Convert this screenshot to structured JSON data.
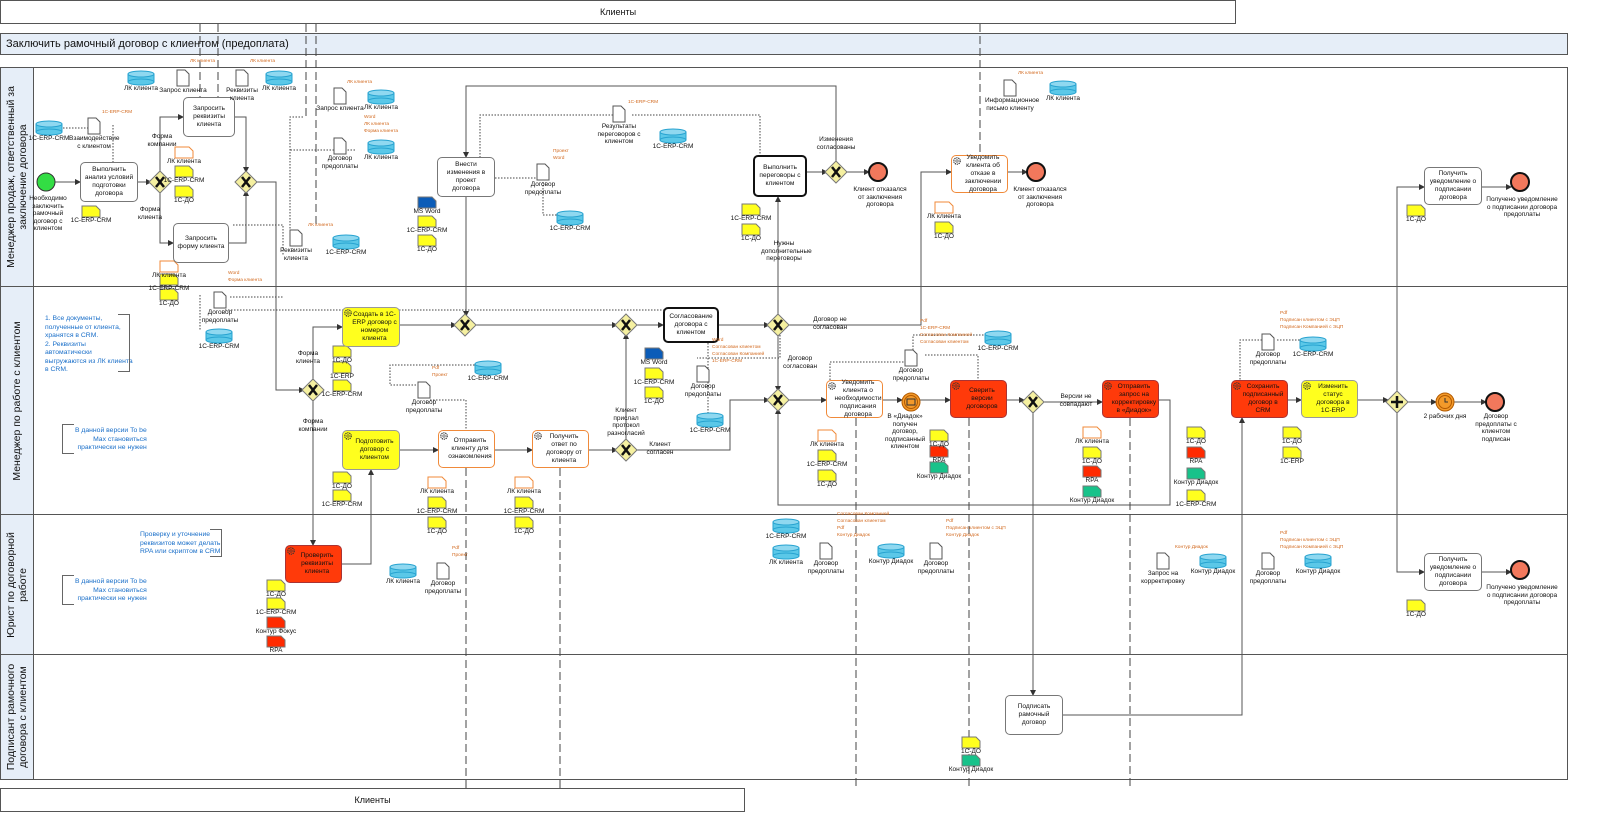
{
  "pools": {
    "top_external": "Клиенты",
    "bottom_external": "Клиенты",
    "main_title": "Заключить рамочный договор с клиентом (предоплата)"
  },
  "lanes": [
    "Менеджер продаж, ответственный за\nзаключение договора",
    "Менеджер по работе с клиентом",
    "Юрист по договорной\nработе",
    "Подписант рамочного\nдоговора с клиентом"
  ],
  "tasks": [
    "Выполнить анализ условий подготовки договора",
    "Запросить реквизиты клиента",
    "Запросить форму клиента",
    "Внести изменения в проект договора",
    "Выполнить переговоры с клиентом",
    "Уведомить клиента об отказе в заключении договора",
    "Получить уведомление о подписании договора",
    "Создать в 1С-ERP договор с номером клиента",
    "Согласование договора с клиентом",
    "Подготовить договор с клиентом",
    "Отправить клиенту для ознакомления",
    "Получить ответ по договору от клиента",
    "Уведомить клиента о необходимости подписания договора",
    "Сверить версии договоров",
    "Отправить запрос на корректировку в «Диадок»",
    "Сохранить подписанный договор в CRM",
    "Изменить статус договора в 1С-ERP",
    "Проверить реквизиты клиента",
    "Получить уведомление о подписании договора",
    "Подписать рамочный договор"
  ],
  "events": [
    "Необходимо заключить рамочный договор с клиентом",
    "Клиент отказался от заключения договора",
    "Клиент отказался от заключения договора",
    "Получено уведомление о подписании договора предоплаты",
    "Договор предоплаты с клиентом подписан",
    "Получено уведомление о подписании договора предоплаты",
    "В «Диадок» получен договор, подписанный клиентом",
    "2 рабочих дня"
  ],
  "flow_labels": [
    "Форма компании",
    "Форма клиента",
    "Изменения согласованы",
    "Нужны дополнительные переговоры",
    "Договор не согласован",
    "Договор согласован",
    "Форма клиента",
    "Форма компании",
    "Клиент прислал протокол разногласий",
    "Клиент согласен",
    "Версии не совпадают"
  ],
  "data_objects": [
    "ЛК клиента",
    "Запрос клиента",
    "Реквизиты клиента",
    "ЛК клиента",
    "1С-ERP-CRM",
    "Взаимодействие с клиентом",
    "1С-ERP-CRM",
    "ЛК клиента",
    "1С-ERP-CRM",
    "1С-ДО",
    "Запрос клиента",
    "ЛК клиента",
    "Договор предоплаты",
    "ЛК клиента",
    "Реквизиты клиента",
    "1С-ERP-CRM",
    "ЛК клиента",
    "1С-ERP-CRM",
    "1С-ДО",
    "MS Word",
    "1С-ERP-CRM",
    "1С-ДО",
    "Договор предоплаты",
    "1С-ERP-CRM",
    "Результаты переговоров с клиентом",
    "1С-ERP-CRM",
    "1С-ERP-CRM",
    "1С-ДО",
    "Информационное письмо клиенту",
    "ЛК клиента",
    "ЛК клиента",
    "1С-ДО",
    "1С-ДО",
    "Договор предоплаты",
    "1С-ERP-CRM",
    "1С-ДО",
    "1С-ERP",
    "1С-ERP-CRM",
    "Договор предоплаты",
    "1С-ERP-CRM",
    "1С-ДО",
    "1С-ERP-CRM",
    "ЛК клиента",
    "1С-ERP-CRM",
    "1С-ДО",
    "ЛК клиента",
    "1С-ERP-CRM",
    "1С-ДО",
    "MS Word",
    "1С-ERP-CRM",
    "1С-ДО",
    "Договор предоплаты",
    "1С-ERP-CRM",
    "Договор предоплаты",
    "1С-ERP-CRM",
    "ЛК клиента",
    "1С-ERP-CRM",
    "1С-ДО",
    "1С-ДО",
    "RPA",
    "Контур Диадок",
    "ЛК клиента",
    "1С-ДО",
    "RPA",
    "Контур Диадок",
    "1С-ДО",
    "RPA",
    "Контур Диадок",
    "1С-ERP-CRM",
    "Договор предоплаты",
    "1С-ERP-CRM",
    "1С-ДО",
    "1С-ERP",
    "1С-ДО",
    "1С-ERP-CRM",
    "Контур Фокус",
    "RPA",
    "ЛК клиента",
    "Договор предоплаты",
    "1С-ERP-CRM",
    "ЛК клиента",
    "Договор предоплаты",
    "Контур Диадок",
    "Договор предоплаты",
    "Запрос на корректировку",
    "Контур Диадок",
    "Договор предоплаты",
    "Контур Диадок",
    "1С-ДО",
    "1С-ДО",
    "Контур Диадок"
  ],
  "notes": [
    "ЛК клиента",
    "ЛК клиента",
    "1С-ERP-CRM",
    "ЛК клиента",
    "Word\nЛК клиента\nФорма клиента",
    "ЛК клиента",
    "Word\nФорма клиента",
    "1С-ERP-CRM",
    "Проект\nWord",
    "ЛК клиента",
    "Pdf\nПроект",
    "Word\nСогласован клиентом\nСогласован Компанией\n1С-ERP-CRM",
    "Pdf\n1С-ERP-CRM\nСогласован Компанией\nСогласован клиентом",
    "Pdf\nПодписан клиентом с ЭЦП\nПодписан Компанией с ЭЦП",
    "Pdf\nПроект",
    "Согласован Компанией\nСогласован клиентом\nPdf\nКонтур Диадок",
    "Pdf\nПодписан клиентом с ЭЦП\nКонтур Диадок",
    "Контур Диадок",
    "Pdf\nПодписан клиентом с ЭЦП\nПодписан Компанией с ЭЦП"
  ],
  "annotations": [
    "1. Все документы,\nполученные от клиента,\nхранятся в CRM.\n2. Реквизиты\nавтоматически\nвыгружаются из ЛК клиента\nв CRM.",
    "В данной версии To be\nMax становиться\nпрактически не нужен",
    "Проверку и уточнение\nреквизитов может делать\nRPA или скриптом в CRM.",
    "В данной версии To be\nMax становиться\nпрактически не нужен"
  ],
  "colors": {
    "lane_header": "#e6eef8",
    "task_red": "#ff3a0a",
    "task_yellow": "#ffff1e",
    "task_orange_border": "#f08a3a",
    "gateway": "#f5f0a0",
    "start": "#33dd44",
    "end": "#f2785c",
    "annotation": "#1a6fc9",
    "note": "#d2691e",
    "store": "#5bc8e8"
  }
}
